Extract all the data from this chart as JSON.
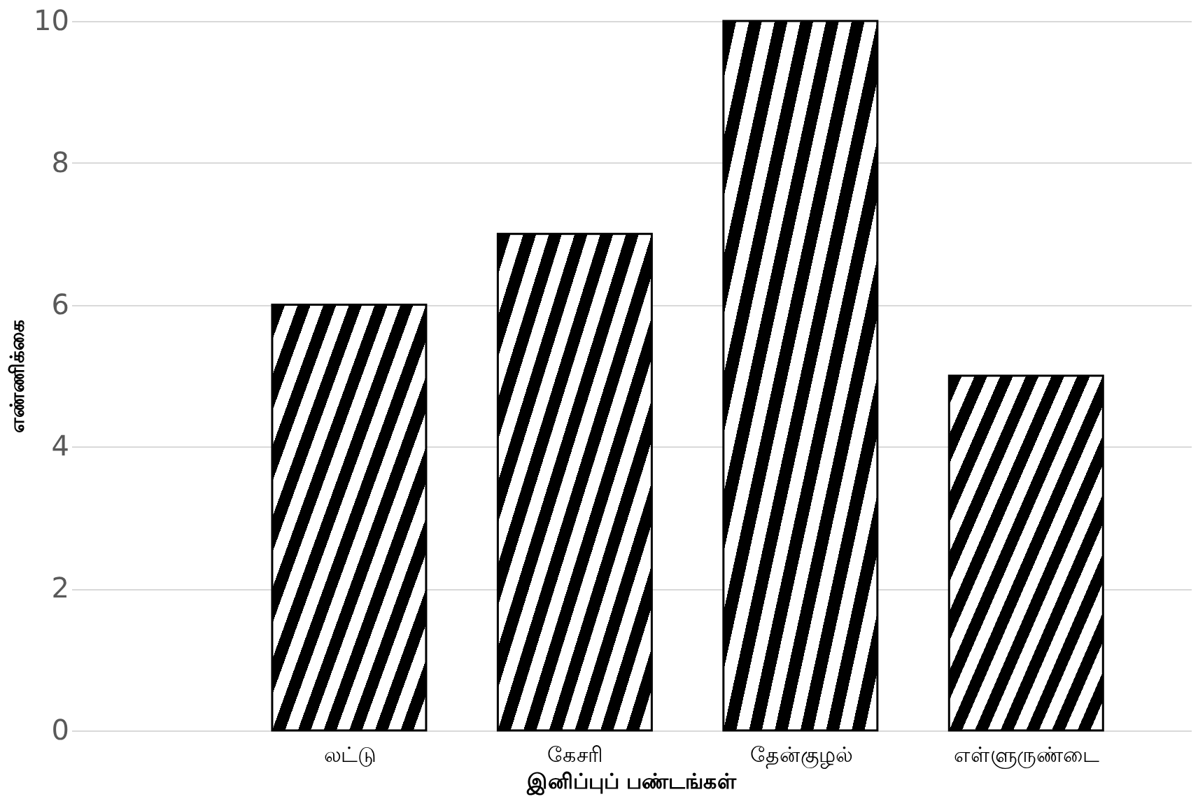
{
  "chart_data": {
    "type": "bar",
    "categories": [
      "லட்டு",
      "கேசரி",
      "தேன்குழல்",
      "எள்ளுருண்டை"
    ],
    "values": [
      6,
      7,
      10,
      5
    ],
    "color": "#000000",
    "xlabel": "இனிப்புப் பண்டங்கள்",
    "ylabel": "எண்ணிக்கை",
    "ylim": [
      0,
      10
    ],
    "yticks": [
      0,
      2,
      4,
      6,
      8,
      10
    ],
    "grid": "y"
  }
}
